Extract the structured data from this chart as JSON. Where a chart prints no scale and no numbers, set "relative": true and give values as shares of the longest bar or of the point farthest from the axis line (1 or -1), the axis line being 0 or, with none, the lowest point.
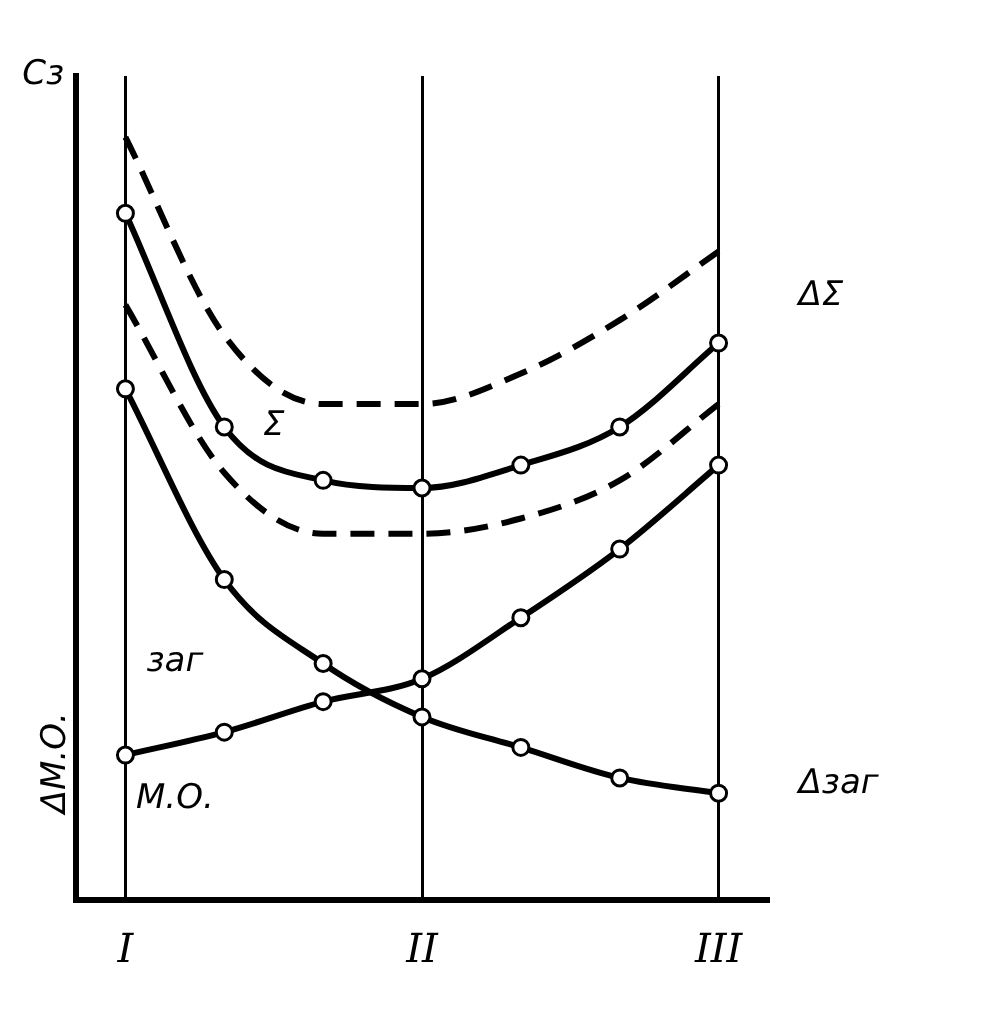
{
  "chart_data": {
    "type": "line",
    "relative": true,
    "ylabel": "Сз",
    "categories": [
      "I",
      null,
      null,
      "II",
      null,
      null,
      "III"
    ],
    "series": [
      {
        "color": "#000000",
        "line_style": "dashed",
        "marker": "none",
        "values": [
          1.0,
          0.74,
          0.65,
          0.65,
          0.69,
          0.76,
          0.85
        ]
      },
      {
        "name": "Σ",
        "color": "#000000",
        "values": [
          0.9,
          0.62,
          0.55,
          0.54,
          0.57,
          0.62,
          0.73
        ]
      },
      {
        "color": "#000000",
        "line_style": "dashed",
        "marker": "none",
        "values": [
          0.78,
          0.56,
          0.48,
          0.48,
          0.5,
          0.55,
          0.65
        ]
      },
      {
        "name": "заг",
        "color": "#000000",
        "values": [
          0.67,
          0.42,
          0.31,
          0.24,
          0.2,
          0.16,
          0.14
        ]
      },
      {
        "name": "М.О.",
        "color": "#000000",
        "values": [
          0.19,
          0.22,
          0.26,
          0.29,
          0.37,
          0.46,
          0.57
        ]
      }
    ],
    "annotations": [
      "ΔΣ",
      "Δзаг",
      "ΔМ.О."
    ],
    "marker": "circle",
    "line_style": "solid",
    "grid": "x",
    "legend": false
  }
}
